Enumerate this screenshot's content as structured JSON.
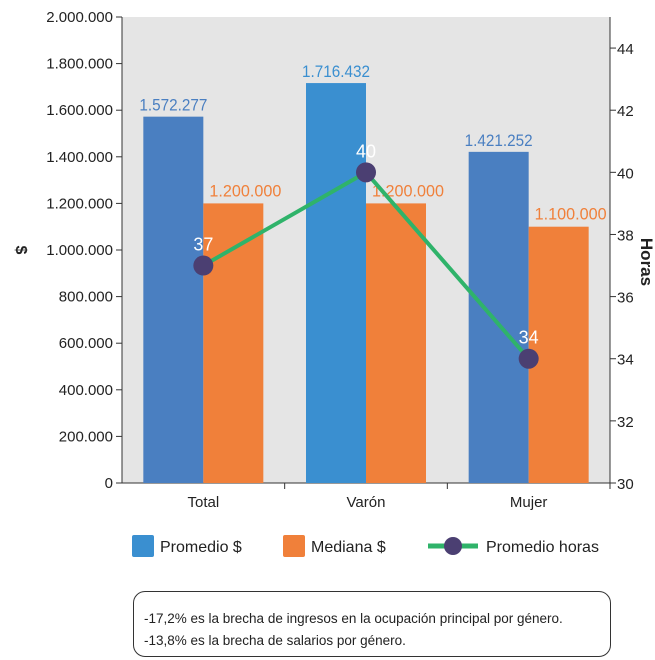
{
  "chart_data": {
    "type": "bar",
    "categories": [
      "Total",
      "Varón",
      "Mujer"
    ],
    "series": [
      {
        "name": "Promedio $",
        "values": [
          1572277,
          1716432,
          1421252
        ],
        "labels": [
          "1.572.277",
          "1.716.432",
          "1.421.252"
        ],
        "colors": [
          "#4a7fc1",
          "#3a8fd0",
          "#4a7fc1"
        ]
      },
      {
        "name": "Mediana $",
        "values": [
          1200000,
          1200000,
          1100000
        ],
        "labels": [
          "1.200.000",
          "1.200.000",
          "1.100.000"
        ],
        "color": "#f0803a"
      }
    ],
    "line_series": {
      "name": "Promedio horas",
      "values": [
        37,
        40,
        34
      ],
      "labels": [
        "37",
        "40",
        "34"
      ],
      "line_color": "#2fb36a",
      "marker_color": "#4b3f72"
    },
    "ylabel": "$",
    "y2label": "Horas",
    "ylim": [
      0,
      2000000
    ],
    "y2lim": [
      30,
      45
    ],
    "y_ticks": [
      "0",
      "200.000",
      "400.000",
      "600.000",
      "800.000",
      "1.000.000",
      "1.200.000",
      "1.400.000",
      "1.600.000",
      "1.800.000",
      "2.000.000"
    ],
    "y2_ticks": [
      "30",
      "32",
      "34",
      "36",
      "38",
      "40",
      "42",
      "44"
    ],
    "y2_tick_values": [
      30,
      32,
      34,
      36,
      38,
      40,
      42,
      44
    ],
    "plot_background": "#e5e5e5",
    "legend_position": "bottom"
  },
  "notes": [
    "-17,2% es la brecha de ingresos en la ocupación principal por género.",
    "-13,8% es la brecha de salarios por género."
  ]
}
